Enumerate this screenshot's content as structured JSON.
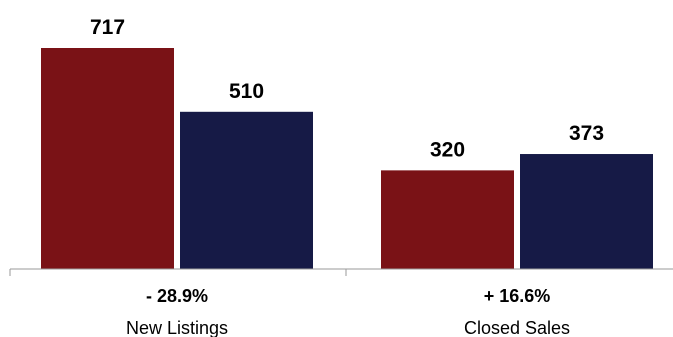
{
  "chart_data": {
    "type": "bar",
    "categories": [
      "New Listings",
      "Closed Sales"
    ],
    "changes": [
      "- 28.9%",
      "+ 16.6%"
    ],
    "series": [
      {
        "values": [
          717,
          510
        ],
        "color": "#7a1216"
      },
      {
        "values": [
          320,
          373
        ],
        "color": "#161a46"
      }
    ],
    "pairs": [
      {
        "values": [
          717,
          510
        ]
      },
      {
        "values": [
          320,
          373
        ]
      }
    ],
    "ylim": [
      0,
      800
    ],
    "grid": false,
    "legend": "none"
  }
}
